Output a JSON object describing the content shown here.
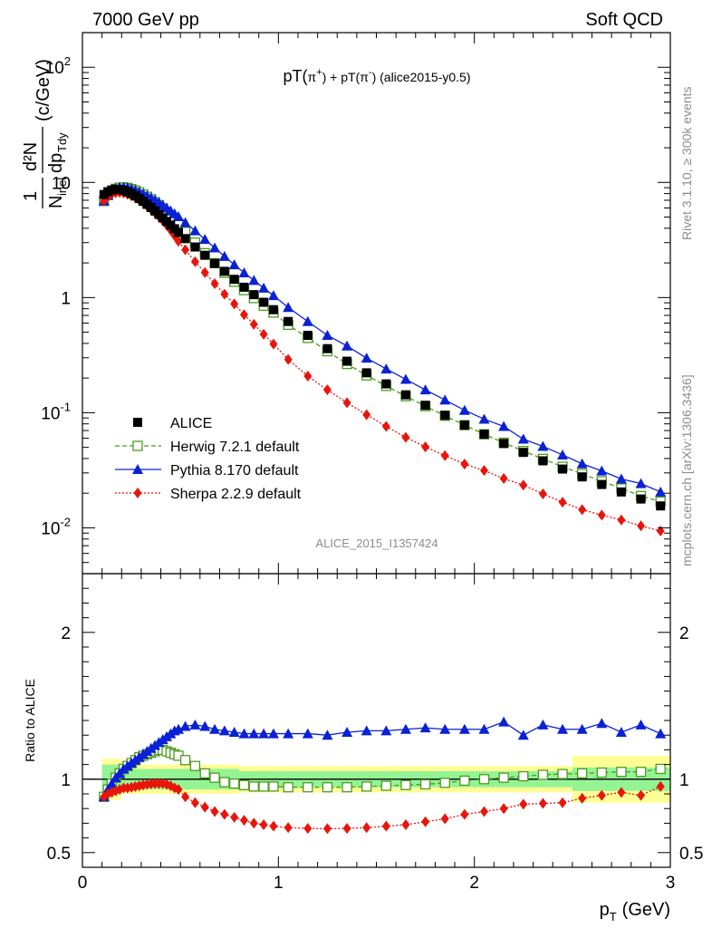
{
  "header": {
    "left": "7000 GeV pp",
    "right": "Soft QCD"
  },
  "side": {
    "rivet": "Rivet 3.1.10, ≥ 300k events",
    "mcplots": "mcplots.cern.ch [arXiv:1306.3436]"
  },
  "watermark": "ALICE_2015_I1357424",
  "chart_data": [
    {
      "type": "scatter",
      "title": "pT(π⁺) + pT(π⁻) (alice2015-y0.5)",
      "title_parts": {
        "a": "pT(",
        "b": "π",
        "c": "+",
        "d": ") + pT(",
        "e": "π",
        "f": "-",
        "g": ") (alice2015-y0.5)"
      },
      "ylabel": "1/N_inel d²N/dp_T dy (c/GeV)",
      "ylabel_parts": {
        "one": "1",
        "N": "N",
        "inel": "inel",
        "d2N": "d²N",
        "dp": "dp",
        "Tdy": "Tdy",
        "unit": "(c/GeV)"
      },
      "yscale": "log",
      "xlim": [
        0,
        3
      ],
      "ylim": [
        0.004,
        200
      ],
      "yticks": [
        {
          "v": 0.01,
          "base": "10",
          "exp": "-2"
        },
        {
          "v": 0.1,
          "base": "10",
          "exp": "-1"
        },
        {
          "v": 1,
          "base": "1",
          "exp": ""
        },
        {
          "v": 10,
          "base": "10",
          "exp": ""
        },
        {
          "v": 100,
          "base": "10",
          "exp": "2"
        }
      ],
      "legend_position": "middle-left",
      "x": [
        0.11,
        0.13,
        0.15,
        0.17,
        0.19,
        0.21,
        0.23,
        0.25,
        0.27,
        0.29,
        0.31,
        0.33,
        0.35,
        0.37,
        0.39,
        0.41,
        0.43,
        0.45,
        0.47,
        0.49,
        0.525,
        0.575,
        0.625,
        0.675,
        0.725,
        0.775,
        0.825,
        0.875,
        0.925,
        0.975,
        1.05,
        1.15,
        1.25,
        1.35,
        1.45,
        1.55,
        1.65,
        1.75,
        1.85,
        1.95,
        2.05,
        2.15,
        2.25,
        2.35,
        2.45,
        2.55,
        2.65,
        2.75,
        2.85,
        2.95
      ],
      "series": [
        {
          "name": "ALICE",
          "color": "#000000",
          "marker": "square",
          "values": [
            7.85,
            8.3,
            8.6,
            8.75,
            8.7,
            8.55,
            8.3,
            8.0,
            7.65,
            7.25,
            6.85,
            6.45,
            6.05,
            5.65,
            5.28,
            4.92,
            4.58,
            4.26,
            3.96,
            3.68,
            3.25,
            2.75,
            2.33,
            1.98,
            1.69,
            1.44,
            1.23,
            1.06,
            0.91,
            0.785,
            0.62,
            0.47,
            0.36,
            0.28,
            0.222,
            0.178,
            0.143,
            0.116,
            0.095,
            0.078,
            0.065,
            0.054,
            0.0452,
            0.0382,
            0.0324,
            0.0277,
            0.0238,
            0.0205,
            0.0178,
            0.0155
          ]
        },
        {
          "name": "Herwig 7.2.1 default",
          "color": "#4d9a1f",
          "marker": "open-square",
          "values": [
            6.9,
            7.75,
            8.35,
            8.8,
            9.0,
            9.05,
            8.95,
            8.75,
            8.5,
            8.2,
            7.85,
            7.5,
            7.15,
            6.75,
            6.35,
            5.95,
            5.55,
            5.15,
            4.75,
            4.38,
            3.72,
            3.0,
            2.43,
            1.99,
            1.64,
            1.37,
            1.16,
            0.99,
            0.85,
            0.74,
            0.58,
            0.446,
            0.342,
            0.265,
            0.211,
            0.171,
            0.139,
            0.114,
            0.094,
            0.078,
            0.065,
            0.0548,
            0.0465,
            0.0397,
            0.0339,
            0.0294,
            0.0254,
            0.022,
            0.0189,
            0.0169
          ]
        },
        {
          "name": "Pythia 8.170 default",
          "color": "#0a21d4",
          "marker": "triangle",
          "values": [
            6.9,
            7.75,
            8.4,
            8.85,
            9.05,
            9.1,
            9.0,
            8.8,
            8.55,
            8.25,
            7.95,
            7.65,
            7.35,
            7.05,
            6.7,
            6.35,
            6.0,
            5.65,
            5.35,
            5.05,
            4.48,
            3.8,
            3.2,
            2.7,
            2.28,
            1.93,
            1.64,
            1.41,
            1.21,
            1.04,
            0.82,
            0.62,
            0.47,
            0.38,
            0.298,
            0.24,
            0.195,
            0.158,
            0.129,
            0.105,
            0.088,
            0.076,
            0.059,
            0.051,
            0.043,
            0.036,
            0.0312,
            0.0266,
            0.0242,
            0.0205
          ]
        },
        {
          "name": "Sherpa 2.2.9 default",
          "color": "#e8150c",
          "marker": "diamond",
          "values": [
            6.9,
            7.55,
            7.95,
            8.15,
            8.2,
            8.1,
            7.9,
            7.65,
            7.35,
            7.0,
            6.65,
            6.25,
            5.85,
            5.45,
            5.05,
            4.65,
            4.25,
            3.85,
            3.45,
            3.08,
            2.6,
            2.05,
            1.65,
            1.32,
            1.07,
            0.88,
            0.71,
            0.585,
            0.48,
            0.395,
            0.29,
            0.208,
            0.158,
            0.122,
            0.096,
            0.076,
            0.061,
            0.0505,
            0.0424,
            0.0358,
            0.0315,
            0.0268,
            0.0235,
            0.0197,
            0.0167,
            0.0144,
            0.0129,
            0.0117,
            0.0104,
            0.0094
          ]
        }
      ]
    },
    {
      "type": "scatter",
      "ylabel": "Ratio to ALICE",
      "xlabel": "p_T (GeV)",
      "xlabel_parts": {
        "p": "p",
        "T": "T",
        "unit": "(GeV)"
      },
      "xlim": [
        0,
        3
      ],
      "ylim": [
        0.4,
        2.4
      ],
      "xticks": [
        0,
        1,
        2,
        3
      ],
      "yticks": [
        0.5,
        1,
        2
      ],
      "reference_line": 1,
      "uncertainty_bands": {
        "inner_color": "#94f494",
        "outer_color": "#ffff96",
        "segments": [
          {
            "x": [
              0.1,
              0.2
            ],
            "inner": [
              0.9,
              1.1
            ],
            "outer": [
              0.86,
              1.14
            ]
          },
          {
            "x": [
              0.2,
              0.8
            ],
            "inner": [
              0.93,
              1.07
            ],
            "outer": [
              0.9,
              1.1
            ]
          },
          {
            "x": [
              0.8,
              2.5
            ],
            "inner": [
              0.945,
              1.055
            ],
            "outer": [
              0.91,
              1.09
            ]
          },
          {
            "x": [
              2.5,
              3.0
            ],
            "inner": [
              0.92,
              1.08
            ],
            "outer": [
              0.84,
              1.16
            ]
          }
        ]
      },
      "x": [
        0.11,
        0.13,
        0.15,
        0.17,
        0.19,
        0.21,
        0.23,
        0.25,
        0.27,
        0.29,
        0.31,
        0.33,
        0.35,
        0.37,
        0.39,
        0.41,
        0.43,
        0.45,
        0.47,
        0.49,
        0.525,
        0.575,
        0.625,
        0.675,
        0.725,
        0.775,
        0.825,
        0.875,
        0.925,
        0.975,
        1.05,
        1.15,
        1.25,
        1.35,
        1.45,
        1.55,
        1.65,
        1.75,
        1.85,
        1.95,
        2.05,
        2.15,
        2.25,
        2.35,
        2.45,
        2.55,
        2.65,
        2.75,
        2.85,
        2.95
      ],
      "series": [
        {
          "name": "Herwig 7.2.1 default",
          "color": "#4d9a1f",
          "marker": "open-square",
          "values": [
            0.88,
            0.93,
            0.97,
            1.01,
            1.04,
            1.07,
            1.09,
            1.11,
            1.13,
            1.15,
            1.16,
            1.17,
            1.18,
            1.19,
            1.2,
            1.2,
            1.19,
            1.18,
            1.17,
            1.16,
            1.13,
            1.09,
            1.04,
            1.01,
            0.98,
            0.97,
            0.96,
            0.95,
            0.95,
            0.95,
            0.945,
            0.945,
            0.945,
            0.945,
            0.95,
            0.955,
            0.96,
            0.965,
            0.975,
            0.99,
            1.0,
            1.01,
            1.02,
            1.03,
            1.035,
            1.04,
            1.045,
            1.05,
            1.05,
            1.07
          ]
        },
        {
          "name": "Pythia 8.170 default",
          "color": "#0a21d4",
          "marker": "triangle",
          "values": [
            0.88,
            0.93,
            0.97,
            1.01,
            1.04,
            1.07,
            1.09,
            1.11,
            1.13,
            1.15,
            1.17,
            1.19,
            1.21,
            1.23,
            1.25,
            1.27,
            1.29,
            1.31,
            1.33,
            1.34,
            1.36,
            1.37,
            1.36,
            1.34,
            1.33,
            1.32,
            1.31,
            1.31,
            1.31,
            1.31,
            1.31,
            1.31,
            1.3,
            1.32,
            1.33,
            1.33,
            1.34,
            1.35,
            1.34,
            1.34,
            1.34,
            1.39,
            1.3,
            1.37,
            1.34,
            1.34,
            1.38,
            1.32,
            1.37,
            1.31
          ]
        },
        {
          "name": "Sherpa 2.2.9 default",
          "color": "#e8150c",
          "marker": "diamond",
          "values": [
            0.88,
            0.9,
            0.91,
            0.92,
            0.93,
            0.94,
            0.94,
            0.945,
            0.95,
            0.955,
            0.96,
            0.965,
            0.968,
            0.97,
            0.97,
            0.97,
            0.965,
            0.955,
            0.94,
            0.93,
            0.88,
            0.84,
            0.81,
            0.78,
            0.76,
            0.74,
            0.72,
            0.7,
            0.69,
            0.68,
            0.67,
            0.665,
            0.663,
            0.665,
            0.67,
            0.68,
            0.69,
            0.71,
            0.73,
            0.76,
            0.78,
            0.8,
            0.83,
            0.835,
            0.84,
            0.87,
            0.89,
            0.91,
            0.89,
            0.95
          ]
        }
      ]
    }
  ]
}
